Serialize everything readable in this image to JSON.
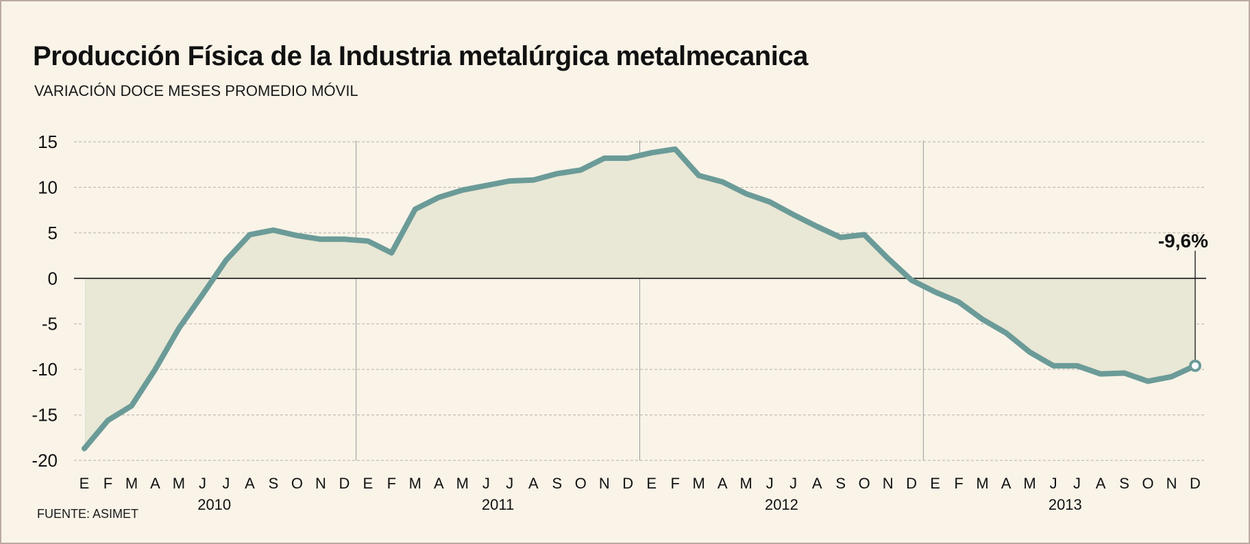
{
  "title": "Producción Física de la Industria metalúrgica metalmecanica",
  "subtitle": "VARIACIÓN DOCE MESES PROMEDIO MÓVIL",
  "source": "FUENTE: ASIMET",
  "chart_data": {
    "type": "area",
    "title": "Producción Física de la Industria metalúrgica metalmecanica",
    "subtitle": "VARIACIÓN DOCE MESES PROMEDIO MÓVIL",
    "xlabel": "",
    "ylabel": "",
    "ylim": [
      -20,
      15
    ],
    "yticks": [
      15,
      10,
      5,
      0,
      -5,
      -10,
      -15,
      -20
    ],
    "grid": "horizontal dashed",
    "month_labels": [
      "E",
      "F",
      "M",
      "A",
      "M",
      "J",
      "J",
      "A",
      "S",
      "O",
      "N",
      "D",
      "E",
      "F",
      "M",
      "A",
      "M",
      "J",
      "J",
      "A",
      "S",
      "O",
      "N",
      "D",
      "E",
      "F",
      "M",
      "A",
      "M",
      "J",
      "J",
      "A",
      "S",
      "O",
      "N",
      "D",
      "E",
      "F",
      "M",
      "A",
      "M",
      "J",
      "J",
      "A",
      "S",
      "O",
      "N",
      "D"
    ],
    "years": [
      "2010",
      "2011",
      "2012",
      "2013"
    ],
    "series": [
      {
        "values": [
          -18.7,
          -15.6,
          -14.0,
          -10.0,
          -5.5,
          -1.8,
          2.0,
          4.8,
          5.3,
          4.7,
          4.3,
          4.3,
          4.1,
          2.8,
          7.6,
          8.9,
          9.7,
          10.2,
          10.7,
          10.8,
          11.5,
          11.9,
          13.2,
          13.2,
          13.8,
          14.2,
          11.3,
          10.6,
          9.3,
          8.4,
          7.0,
          5.7,
          4.5,
          4.8,
          2.2,
          -0.2,
          -1.5,
          -2.6,
          -4.5,
          -6.0,
          -8.1,
          -9.6,
          -9.6,
          -10.5,
          -10.4,
          -11.3,
          -10.8,
          -9.6
        ]
      }
    ],
    "annotations": [
      {
        "label": "-9,6%",
        "month_index": 47,
        "value": -9.6
      }
    ],
    "colors": {
      "line": "#6b9b98",
      "fill": "#e9e7d5",
      "background": "#f9f3e8",
      "zero_line": "#111111",
      "grid": "#b5b0a5",
      "year_divider": "#9a9a9a"
    }
  }
}
